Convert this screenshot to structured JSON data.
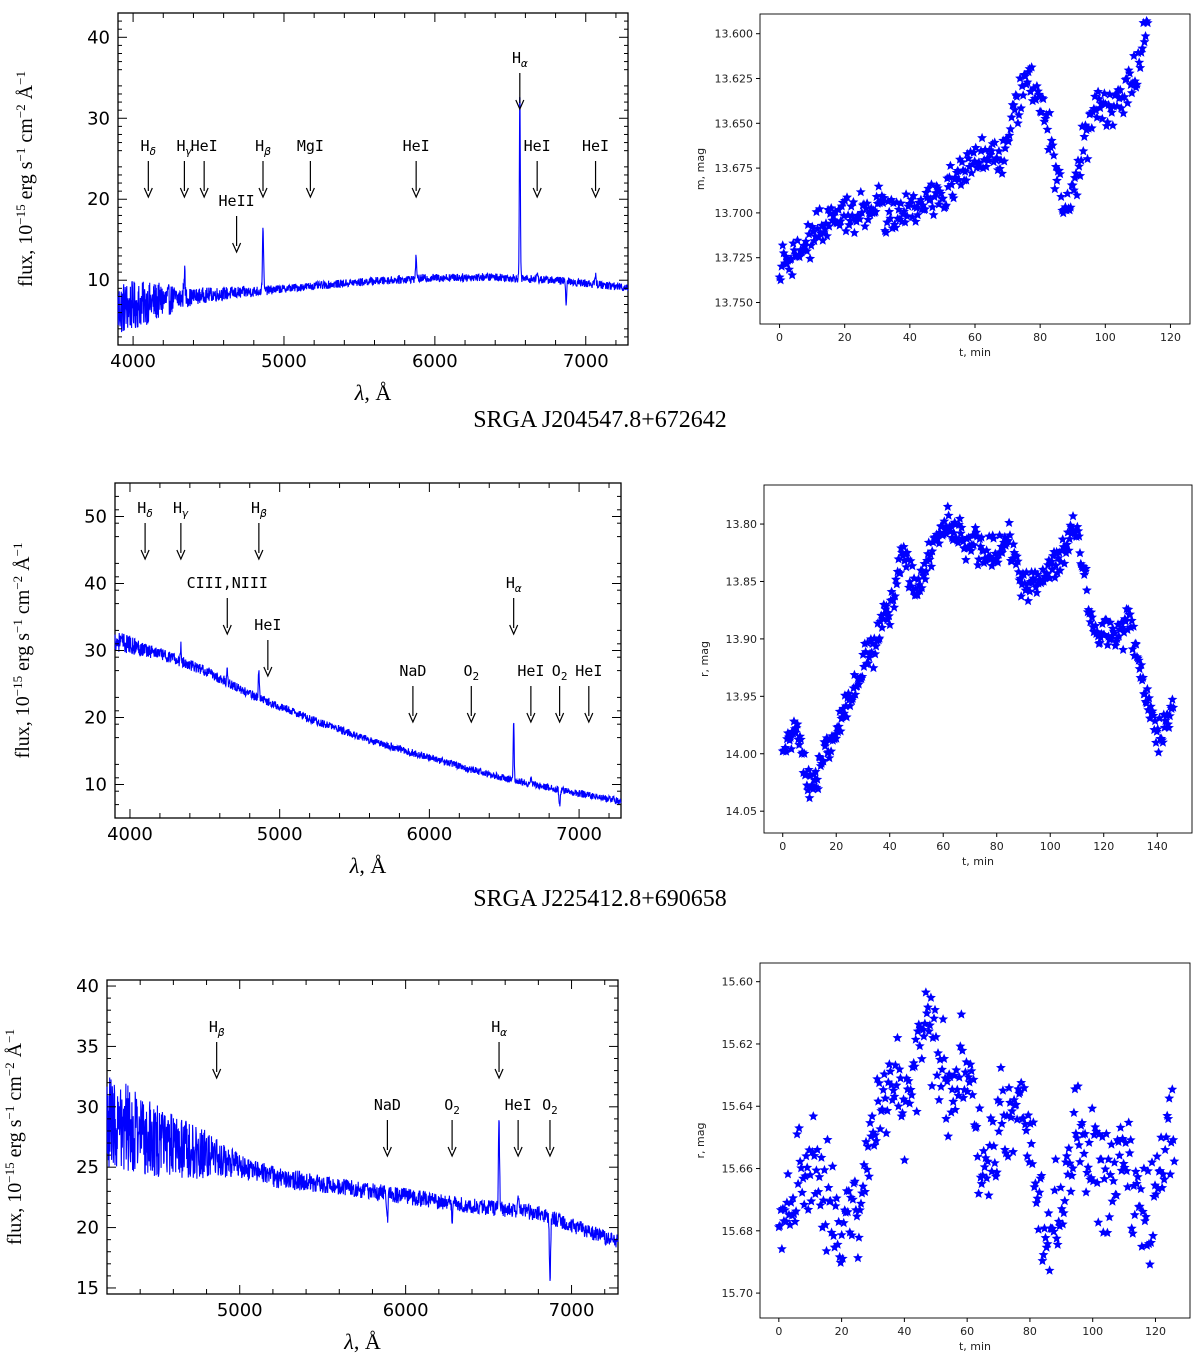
{
  "colors": {
    "series": "#0000ff",
    "axis": "#000000"
  },
  "titles": [
    "SRGA J204547.8+672642",
    "SRGA J225412.8+690658"
  ],
  "chart_data": [
    {
      "type": "line",
      "panel": "spec1",
      "xlabel_sym": "λ",
      "xlabel_unit": ", Å",
      "ylabel_prefix": "flux, 10",
      "ylabel_exp": "−15",
      "ylabel_mid": " erg s",
      "ylabel_exp2": "−1",
      "ylabel_mid2": " cm",
      "ylabel_exp3": "−2",
      "ylabel_mid3": " Å",
      "ylabel_exp4": "−1",
      "xlim": [
        3900,
        7280
      ],
      "ylim": [
        2,
        43
      ],
      "xticks": [
        4000,
        5000,
        6000,
        7000
      ],
      "yticks": [
        10,
        20,
        30,
        40
      ],
      "continuum": [
        [
          3900,
          6.5
        ],
        [
          4200,
          7.5
        ],
        [
          4500,
          8.2
        ],
        [
          4800,
          8.6
        ],
        [
          5200,
          9.3
        ],
        [
          5600,
          9.9
        ],
        [
          6000,
          10.3
        ],
        [
          6400,
          10.4
        ],
        [
          6800,
          10.0
        ],
        [
          7280,
          9.1
        ]
      ],
      "noise": [
        [
          3900,
          3.5
        ],
        [
          4150,
          2.4
        ],
        [
          4400,
          1.0
        ],
        [
          5000,
          0.5
        ],
        [
          7280,
          0.5
        ]
      ],
      "features": [
        [
          4340,
          3.5,
          10
        ],
        [
          4861,
          8.0,
          9
        ],
        [
          5876,
          3.0,
          8
        ],
        [
          6563,
          23.0,
          8
        ],
        [
          6678,
          0.8,
          8
        ],
        [
          6870,
          -2.5,
          10
        ],
        [
          7065,
          1.2,
          8
        ]
      ],
      "arrows": [
        {
          "x": 4101,
          "base": "H",
          "sub": "δ",
          "level": 1
        },
        {
          "x": 4340,
          "base": "H",
          "sub": "γ",
          "level": 1
        },
        {
          "x": 4471,
          "base": "HeI",
          "sub": "",
          "level": 1
        },
        {
          "x": 4686,
          "base": "HeII",
          "sub": "",
          "level": 2
        },
        {
          "x": 4861,
          "base": "H",
          "sub": "β",
          "level": 1
        },
        {
          "x": 5175,
          "base": "MgI",
          "sub": "",
          "level": 1
        },
        {
          "x": 5876,
          "base": "HeI",
          "sub": "",
          "level": 1
        },
        {
          "x": 6563,
          "base": "H",
          "sub": "α",
          "level": 0
        },
        {
          "x": 6678,
          "base": "HeI",
          "sub": "",
          "level": 1
        },
        {
          "x": 7065,
          "base": "HeI",
          "sub": "",
          "level": 1
        }
      ]
    },
    {
      "type": "scatter",
      "panel": "lc1",
      "xlabel": "t, min",
      "ylabel": "m, mag",
      "xlim": [
        -6,
        126
      ],
      "ylim": [
        13.589,
        13.762
      ],
      "inverted_y": true,
      "xticks": [
        0,
        20,
        40,
        60,
        80,
        100,
        120
      ],
      "yticks": [
        "13.600",
        "13.625",
        "13.650",
        "13.675",
        "13.700",
        "13.725",
        "13.750"
      ],
      "x_range": [
        0,
        113
      ],
      "trend": [
        [
          0,
          13.728
        ],
        [
          10,
          13.712
        ],
        [
          20,
          13.7
        ],
        [
          30,
          13.698
        ],
        [
          40,
          13.7
        ],
        [
          50,
          13.69
        ],
        [
          58,
          13.672
        ],
        [
          62,
          13.668
        ],
        [
          68,
          13.675
        ],
        [
          72,
          13.64
        ],
        [
          76,
          13.625
        ],
        [
          82,
          13.65
        ],
        [
          88,
          13.7
        ],
        [
          92,
          13.67
        ],
        [
          96,
          13.645
        ],
        [
          100,
          13.64
        ],
        [
          108,
          13.63
        ],
        [
          113,
          13.598
        ]
      ],
      "scatter": 0.01
    },
    {
      "type": "line",
      "panel": "spec2",
      "xlabel_sym": "λ",
      "xlabel_unit": ", Å",
      "ylabel_prefix": "flux, 10",
      "ylabel_exp": "−15",
      "ylabel_mid": " erg s",
      "ylabel_exp2": "−1",
      "ylabel_mid2": " cm",
      "ylabel_exp3": "−2",
      "ylabel_mid3": " Å",
      "ylabel_exp4": "−1",
      "xlim": [
        3900,
        7280
      ],
      "ylim": [
        5,
        55
      ],
      "xticks": [
        4000,
        5000,
        6000,
        7000
      ],
      "yticks": [
        10,
        20,
        30,
        40,
        50
      ],
      "continuum": [
        [
          3900,
          31.5
        ],
        [
          4200,
          29.5
        ],
        [
          4500,
          27.0
        ],
        [
          4800,
          23.5
        ],
        [
          5200,
          19.8
        ],
        [
          5600,
          16.6
        ],
        [
          6000,
          14.0
        ],
        [
          6400,
          11.5
        ],
        [
          6800,
          9.5
        ],
        [
          7280,
          7.5
        ]
      ],
      "noise": [
        [
          3900,
          1.6
        ],
        [
          4200,
          0.9
        ],
        [
          5000,
          0.6
        ],
        [
          7280,
          0.5
        ]
      ],
      "features": [
        [
          4340,
          2.5,
          8
        ],
        [
          4650,
          2.0,
          8
        ],
        [
          4861,
          4.5,
          8
        ],
        [
          6563,
          9.0,
          8
        ],
        [
          6678,
          0.8,
          8
        ],
        [
          6870,
          -2.5,
          10
        ]
      ],
      "arrows": [
        {
          "x": 4101,
          "base": "H",
          "sub": "δ",
          "level": 0
        },
        {
          "x": 4340,
          "base": "H",
          "sub": "γ",
          "level": 0
        },
        {
          "x": 4861,
          "base": "H",
          "sub": "β",
          "level": 0
        },
        {
          "x": 4650,
          "base": "CIII,NIII",
          "sub": "",
          "level": 1
        },
        {
          "x": 4921,
          "base": "HeI",
          "sub": "",
          "level": 2
        },
        {
          "x": 6563,
          "base": "H",
          "sub": "α",
          "level": 1
        },
        {
          "x": 5890,
          "base": "NaD",
          "sub": "",
          "level": 3
        },
        {
          "x": 6280,
          "base": "O",
          "sub": "2",
          "level": 3
        },
        {
          "x": 6678,
          "base": "HeI",
          "sub": "",
          "level": 3
        },
        {
          "x": 6870,
          "base": "O",
          "sub": "2",
          "level": 3
        },
        {
          "x": 7065,
          "base": "HeI",
          "sub": "",
          "level": 3
        }
      ]
    },
    {
      "type": "scatter",
      "panel": "lc2",
      "xlabel": "t, min",
      "ylabel": "r, mag",
      "xlim": [
        -7,
        153
      ],
      "ylim": [
        13.766,
        14.069
      ],
      "inverted_y": true,
      "xticks": [
        0,
        20,
        40,
        60,
        80,
        100,
        120,
        140
      ],
      "yticks": [
        "13.80",
        "13.85",
        "13.90",
        "13.95",
        "14.00",
        "14.05"
      ],
      "x_range": [
        0,
        146
      ],
      "trend": [
        [
          0,
          14.0
        ],
        [
          5,
          13.975
        ],
        [
          10,
          14.03
        ],
        [
          15,
          14.005
        ],
        [
          20,
          13.975
        ],
        [
          30,
          13.925
        ],
        [
          40,
          13.875
        ],
        [
          45,
          13.825
        ],
        [
          50,
          13.855
        ],
        [
          60,
          13.8
        ],
        [
          70,
          13.815
        ],
        [
          78,
          13.825
        ],
        [
          85,
          13.815
        ],
        [
          90,
          13.855
        ],
        [
          100,
          13.84
        ],
        [
          110,
          13.805
        ],
        [
          116,
          13.895
        ],
        [
          125,
          13.9
        ],
        [
          130,
          13.88
        ],
        [
          135,
          13.945
        ],
        [
          140,
          13.985
        ],
        [
          146,
          13.96
        ]
      ],
      "scatter": 0.013
    },
    {
      "type": "line",
      "panel": "spec3",
      "xlabel_sym": "λ",
      "xlabel_unit": ", Å",
      "ylabel_prefix": "flux, 10",
      "ylabel_exp": "−15",
      "ylabel_mid": " erg s",
      "ylabel_exp2": "−1",
      "ylabel_mid2": " cm",
      "ylabel_exp3": "−2",
      "ylabel_mid3": " Å",
      "ylabel_exp4": "−1",
      "xlim": [
        4200,
        7280
      ],
      "ylim": [
        14.5,
        40.5
      ],
      "xticks": [
        5000,
        6000,
        7000
      ],
      "yticks": [
        15,
        20,
        25,
        30,
        35,
        40
      ],
      "continuum": [
        [
          4200,
          29.0
        ],
        [
          4500,
          27.2
        ],
        [
          4800,
          26.0
        ],
        [
          5200,
          24.2
        ],
        [
          5600,
          23.4
        ],
        [
          6000,
          22.6
        ],
        [
          6400,
          21.8
        ],
        [
          6800,
          21.2
        ],
        [
          7280,
          18.8
        ]
      ],
      "noise": [
        [
          4200,
          4.0
        ],
        [
          4500,
          3.0
        ],
        [
          4800,
          2.0
        ],
        [
          5000,
          1.0
        ],
        [
          5600,
          0.7
        ],
        [
          7280,
          0.6
        ]
      ],
      "features": [
        [
          6563,
          7.5,
          8
        ],
        [
          6678,
          1.5,
          10
        ],
        [
          6870,
          -5.0,
          10
        ],
        [
          5890,
          -2.0,
          10
        ],
        [
          6280,
          -1.5,
          8
        ]
      ],
      "arrows": [
        {
          "x": 4861,
          "base": "H",
          "sub": "β",
          "level": 0
        },
        {
          "x": 6563,
          "base": "H",
          "sub": "α",
          "level": 0
        },
        {
          "x": 5890,
          "base": "NaD",
          "sub": "",
          "level": 1
        },
        {
          "x": 6280,
          "base": "O",
          "sub": "2",
          "level": 1
        },
        {
          "x": 6678,
          "base": "HeI",
          "sub": "",
          "level": 1
        },
        {
          "x": 6870,
          "base": "O",
          "sub": "2",
          "level": 1
        }
      ]
    },
    {
      "type": "scatter",
      "panel": "lc3",
      "xlabel": "t, min",
      "ylabel": "r, mag",
      "xlim": [
        -6,
        131
      ],
      "ylim": [
        15.594,
        15.708
      ],
      "inverted_y": true,
      "xticks": [
        0,
        20,
        40,
        60,
        80,
        100,
        120
      ],
      "yticks": [
        "15.60",
        "15.62",
        "15.64",
        "15.66",
        "15.68",
        "15.70"
      ],
      "x_range": [
        0,
        126
      ],
      "trend": [
        [
          0,
          15.678
        ],
        [
          10,
          15.655
        ],
        [
          20,
          15.68
        ],
        [
          25,
          15.672
        ],
        [
          35,
          15.63
        ],
        [
          40,
          15.64
        ],
        [
          48,
          15.615
        ],
        [
          55,
          15.64
        ],
        [
          60,
          15.625
        ],
        [
          65,
          15.66
        ],
        [
          72,
          15.64
        ],
        [
          80,
          15.645
        ],
        [
          85,
          15.685
        ],
        [
          90,
          15.67
        ],
        [
          95,
          15.65
        ],
        [
          105,
          15.665
        ],
        [
          110,
          15.655
        ],
        [
          118,
          15.68
        ],
        [
          125,
          15.645
        ]
      ],
      "scatter": 0.013
    }
  ]
}
